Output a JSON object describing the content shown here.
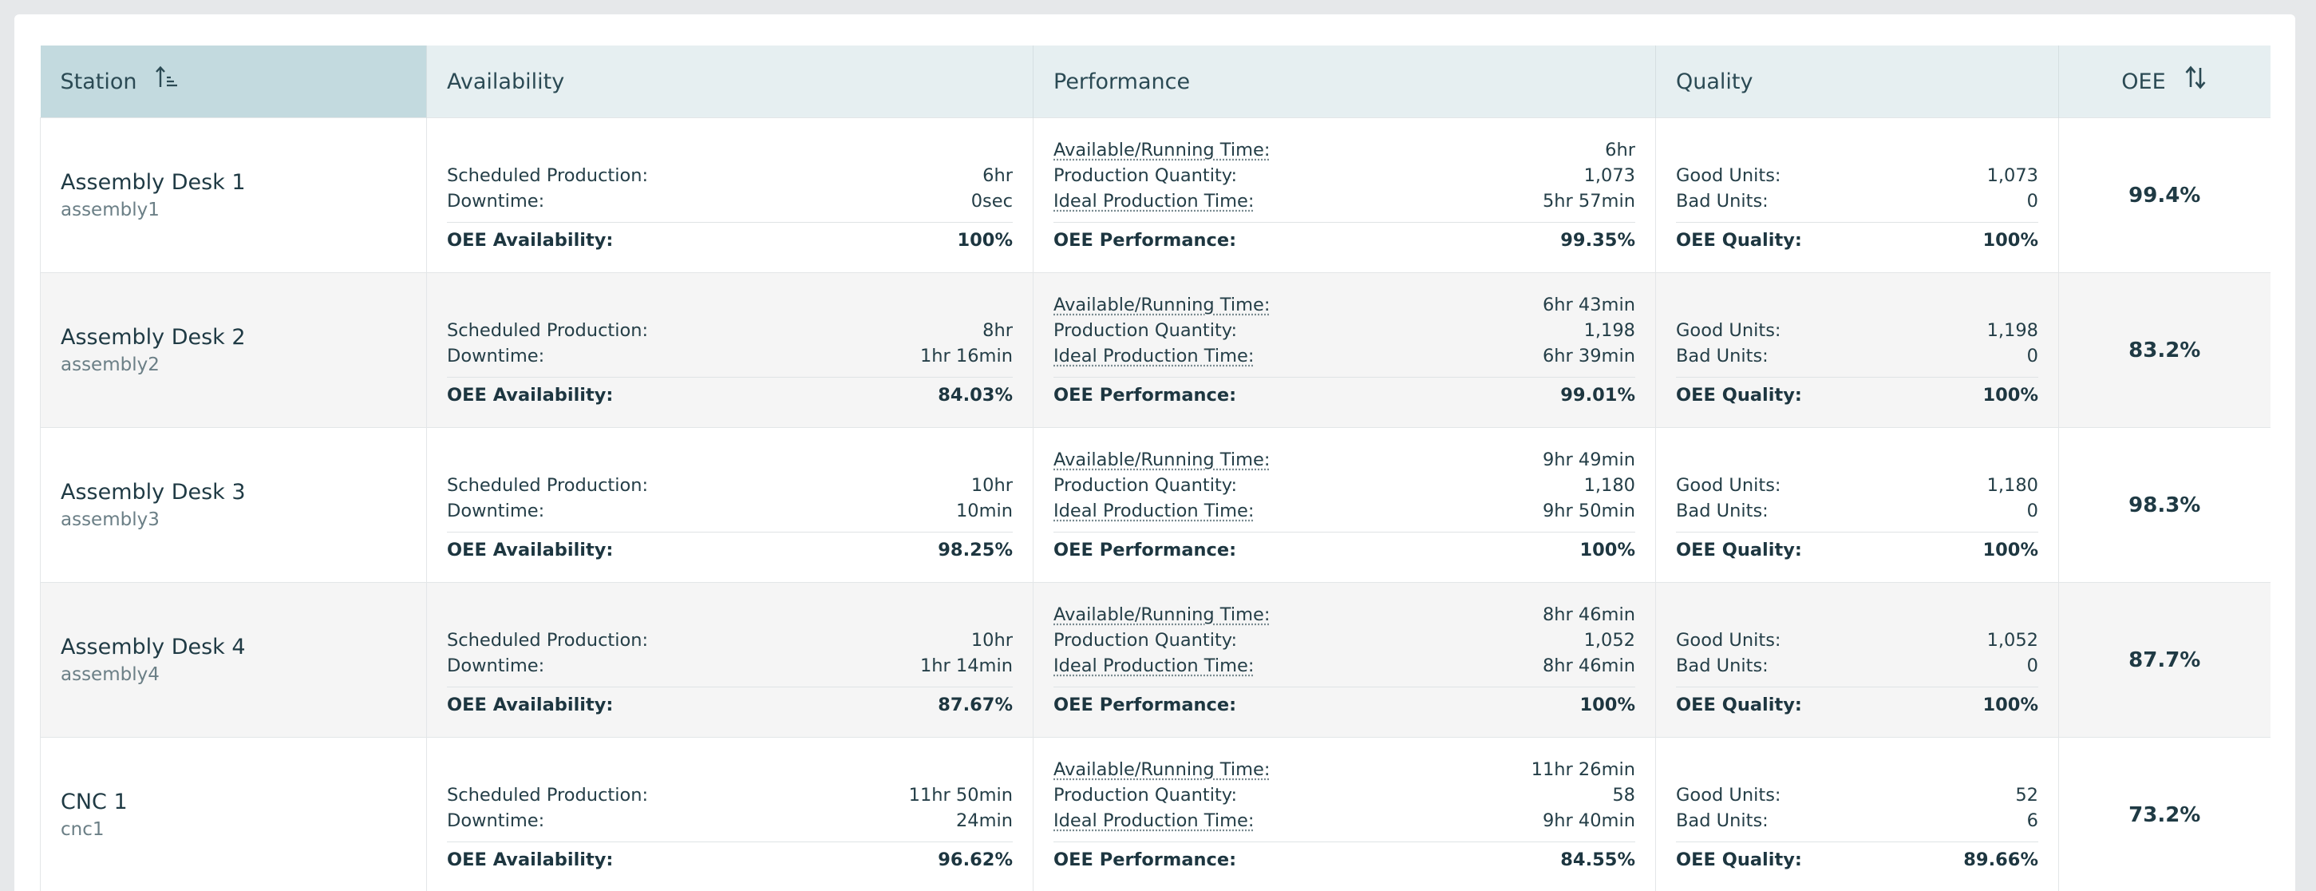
{
  "headers": {
    "station": "Station",
    "availability": "Availability",
    "performance": "Performance",
    "quality": "Quality",
    "oee": "OEE"
  },
  "labels": {
    "scheduled": "Scheduled Production:",
    "downtime": "Downtime:",
    "oee_availability": "OEE Availability:",
    "running_time": "Available/Running Time:",
    "production_qty": "Production Quantity:",
    "ideal_time": "Ideal Production Time:",
    "oee_performance": "OEE Performance:",
    "good_units": "Good Units:",
    "bad_units": "Bad Units:",
    "oee_quality": "OEE Quality:"
  },
  "icons": {
    "station_sort": "sort-ascending-icon",
    "oee_sort": "sort-both-icon"
  },
  "colors": {
    "header_bg": "#e6eff1",
    "header_active_bg": "#c3dadf",
    "alt_row_bg": "#f5f5f5"
  },
  "rows": [
    {
      "name": "Assembly Desk 1",
      "id": "assembly1",
      "scheduled": "6hr",
      "downtime": "0sec",
      "availability": "100%",
      "running_time": "6hr",
      "production_qty": "1,073",
      "ideal_time": "5hr 57min",
      "performance": "99.35%",
      "good_units": "1,073",
      "bad_units": "0",
      "quality": "100%",
      "oee": "99.4%"
    },
    {
      "name": "Assembly Desk 2",
      "id": "assembly2",
      "scheduled": "8hr",
      "downtime": "1hr 16min",
      "availability": "84.03%",
      "running_time": "6hr 43min",
      "production_qty": "1,198",
      "ideal_time": "6hr 39min",
      "performance": "99.01%",
      "good_units": "1,198",
      "bad_units": "0",
      "quality": "100%",
      "oee": "83.2%"
    },
    {
      "name": "Assembly Desk 3",
      "id": "assembly3",
      "scheduled": "10hr",
      "downtime": "10min",
      "availability": "98.25%",
      "running_time": "9hr 49min",
      "production_qty": "1,180",
      "ideal_time": "9hr 50min",
      "performance": "100%",
      "good_units": "1,180",
      "bad_units": "0",
      "quality": "100%",
      "oee": "98.3%"
    },
    {
      "name": "Assembly Desk 4",
      "id": "assembly4",
      "scheduled": "10hr",
      "downtime": "1hr 14min",
      "availability": "87.67%",
      "running_time": "8hr 46min",
      "production_qty": "1,052",
      "ideal_time": "8hr 46min",
      "performance": "100%",
      "good_units": "1,052",
      "bad_units": "0",
      "quality": "100%",
      "oee": "87.7%"
    },
    {
      "name": "CNC 1",
      "id": "cnc1",
      "scheduled": "11hr 50min",
      "downtime": "24min",
      "availability": "96.62%",
      "running_time": "11hr 26min",
      "production_qty": "58",
      "ideal_time": "9hr 40min",
      "performance": "84.55%",
      "good_units": "52",
      "bad_units": "6",
      "quality": "89.66%",
      "oee": "73.2%"
    }
  ]
}
